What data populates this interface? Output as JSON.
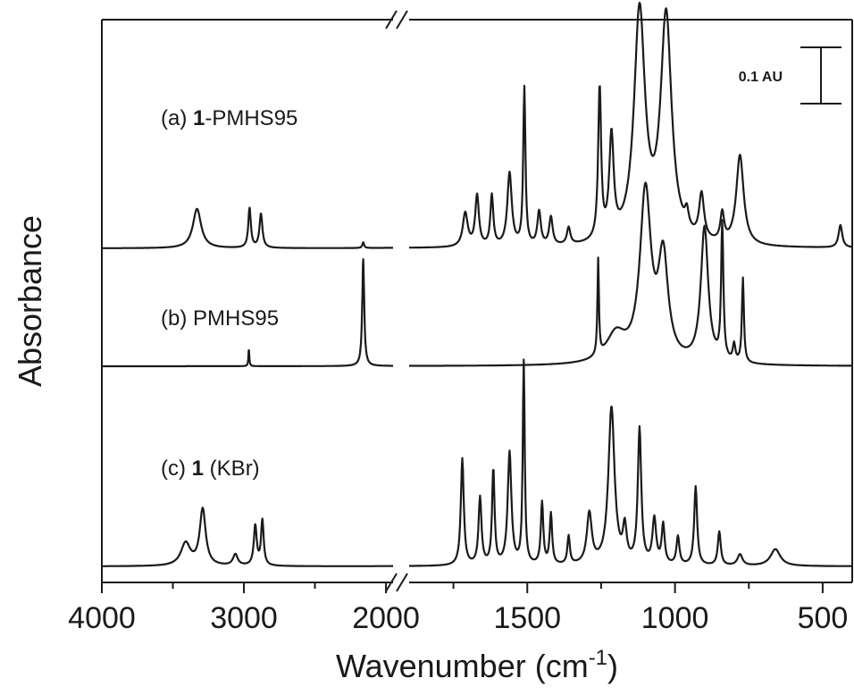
{
  "chart_data": {
    "type": "line",
    "xlabel": "Wavenumber (cm",
    "xlabel_sup": "-1",
    "xlabel_close": ")",
    "ylabel": "Absorbance",
    "xlim": [
      4000,
      400
    ],
    "x_reversed": true,
    "axis_break": [
      1950,
      1900
    ],
    "xticks": [
      {
        "value": 4000,
        "label": "4000"
      },
      {
        "value": 3000,
        "label": "3000"
      },
      {
        "value": 2000,
        "label": "2000"
      },
      {
        "value": 1500,
        "label": "1500"
      },
      {
        "value": 1000,
        "label": "1000"
      },
      {
        "value": 500,
        "label": "500"
      }
    ],
    "scale_bar": {
      "label": "0.1 AU",
      "value": 0.1
    },
    "grid": false,
    "legend": "none",
    "series": [
      {
        "prefix": "(a) ",
        "bold": "1",
        "suffix": "-PMHS95",
        "baseline": 0.0,
        "peaks": [
          [
            3330,
            0.07,
            70
          ],
          [
            2960,
            0.07,
            22
          ],
          [
            2880,
            0.06,
            25
          ],
          [
            2160,
            0.01,
            15
          ],
          [
            1710,
            0.06,
            20
          ],
          [
            1670,
            0.09,
            15
          ],
          [
            1620,
            0.09,
            12
          ],
          [
            1560,
            0.13,
            18
          ],
          [
            1510,
            0.28,
            9
          ],
          [
            1460,
            0.06,
            14
          ],
          [
            1420,
            0.05,
            14
          ],
          [
            1360,
            0.03,
            14
          ],
          [
            1255,
            0.27,
            12
          ],
          [
            1215,
            0.18,
            18
          ],
          [
            1120,
            0.41,
            45
          ],
          [
            1030,
            0.4,
            45
          ],
          [
            960,
            0.03,
            15
          ],
          [
            910,
            0.08,
            20
          ],
          [
            840,
            0.05,
            15
          ],
          [
            780,
            0.16,
            30
          ],
          [
            440,
            0.04,
            15
          ]
        ]
      },
      {
        "prefix": "(b) ",
        "bold": "",
        "suffix": "PMHS95",
        "baseline": 0.0,
        "peaks": [
          [
            2965,
            0.03,
            8
          ],
          [
            2160,
            0.19,
            17
          ],
          [
            1260,
            0.17,
            6
          ],
          [
            1200,
            0.05,
            80
          ],
          [
            1100,
            0.3,
            45
          ],
          [
            1040,
            0.18,
            40
          ],
          [
            900,
            0.24,
            30
          ],
          [
            840,
            0.24,
            9
          ],
          [
            800,
            0.03,
            10
          ],
          [
            770,
            0.15,
            8
          ]
        ]
      },
      {
        "prefix": "(c) ",
        "bold": "1",
        "suffix": " (KBr)",
        "baseline": 0.0,
        "peaks": [
          [
            3410,
            0.04,
            80
          ],
          [
            3290,
            0.1,
            50
          ],
          [
            3060,
            0.02,
            40
          ],
          [
            2920,
            0.07,
            25
          ],
          [
            2870,
            0.08,
            22
          ],
          [
            1720,
            0.19,
            12
          ],
          [
            1660,
            0.12,
            12
          ],
          [
            1615,
            0.17,
            10
          ],
          [
            1560,
            0.2,
            15
          ],
          [
            1512,
            0.36,
            8
          ],
          [
            1450,
            0.11,
            10
          ],
          [
            1420,
            0.09,
            10
          ],
          [
            1360,
            0.05,
            10
          ],
          [
            1290,
            0.09,
            20
          ],
          [
            1215,
            0.28,
            25
          ],
          [
            1170,
            0.06,
            15
          ],
          [
            1120,
            0.24,
            14
          ],
          [
            1070,
            0.08,
            15
          ],
          [
            1040,
            0.07,
            12
          ],
          [
            990,
            0.05,
            12
          ],
          [
            930,
            0.14,
            12
          ],
          [
            850,
            0.06,
            12
          ],
          [
            780,
            0.02,
            20
          ],
          [
            660,
            0.03,
            40
          ]
        ]
      }
    ]
  }
}
